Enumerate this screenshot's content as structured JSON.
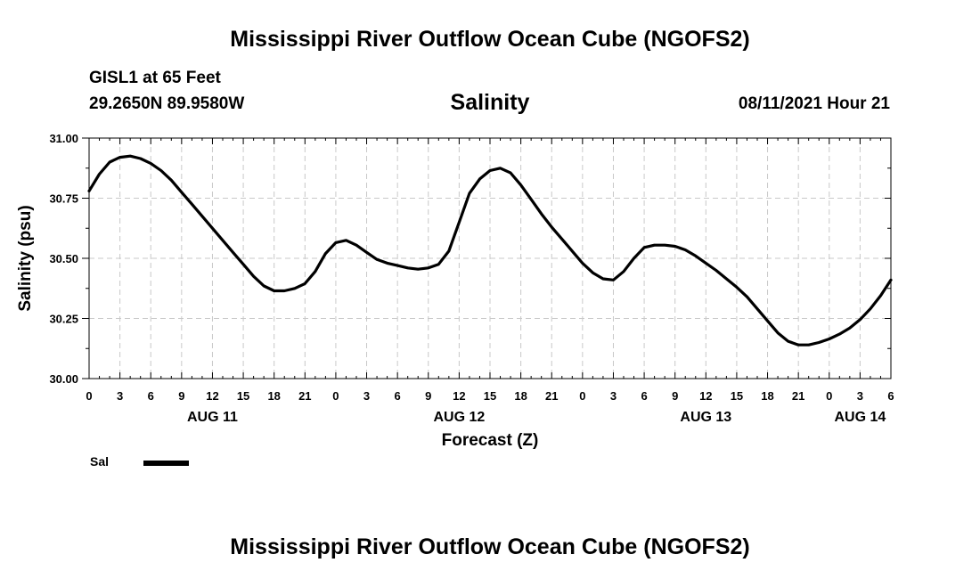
{
  "header": {
    "main_title": "Mississippi River Outflow Ocean Cube (NGOFS2)",
    "station_name": "GISL1 at 65 Feet",
    "station_coords": "29.2650N  89.9580W",
    "chart_title": "Salinity",
    "run_time": "08/11/2021 Hour 21"
  },
  "footer": {
    "bottom_title": "Mississippi River Outflow Ocean Cube (NGOFS2)"
  },
  "legend": {
    "label": "Sal"
  },
  "chart_data": {
    "type": "line",
    "title": "Salinity",
    "xlabel": "Forecast (Z)",
    "ylabel": "Salinity (psu)",
    "xlim": [
      0,
      78
    ],
    "ylim": [
      30.0,
      31.0
    ],
    "yticks": [
      30.0,
      30.25,
      30.5,
      30.75,
      31.0
    ],
    "ytick_labels": [
      "30.00",
      "30.25",
      "30.50",
      "30.75",
      "31.00"
    ],
    "xtick_hours": [
      0,
      3,
      6,
      9,
      12,
      15,
      18,
      21,
      24,
      27,
      30,
      33,
      36,
      39,
      42,
      45,
      48,
      51,
      54,
      57,
      60,
      63,
      66,
      69,
      72,
      75,
      78
    ],
    "xtick_labels": [
      "0",
      "3",
      "6",
      "9",
      "12",
      "15",
      "18",
      "21",
      "0",
      "3",
      "6",
      "9",
      "12",
      "15",
      "18",
      "21",
      "0",
      "3",
      "6",
      "9",
      "12",
      "15",
      "18",
      "21",
      "0",
      "3",
      "6"
    ],
    "day_labels": [
      {
        "hour": 12,
        "label": "AUG 11"
      },
      {
        "hour": 36,
        "label": "AUG 12"
      },
      {
        "hour": 60,
        "label": "AUG 13"
      },
      {
        "hour": 75,
        "label": "AUG 14"
      }
    ],
    "grid": true,
    "legend_position": "bottom-left",
    "series": [
      {
        "name": "Sal",
        "x": [
          0,
          1,
          2,
          3,
          4,
          5,
          6,
          7,
          8,
          9,
          10,
          11,
          12,
          13,
          14,
          15,
          16,
          17,
          18,
          19,
          20,
          21,
          22,
          23,
          24,
          25,
          26,
          27,
          28,
          29,
          30,
          31,
          32,
          33,
          34,
          35,
          36,
          37,
          38,
          39,
          40,
          41,
          42,
          43,
          44,
          45,
          46,
          47,
          48,
          49,
          50,
          51,
          52,
          53,
          54,
          55,
          56,
          57,
          58,
          59,
          60,
          61,
          62,
          63,
          64,
          65,
          66,
          67,
          68,
          69,
          70,
          71,
          72,
          73,
          74,
          75,
          76,
          77,
          78
        ],
        "values": [
          30.78,
          30.85,
          30.9,
          30.92,
          30.925,
          30.915,
          30.895,
          30.865,
          30.825,
          30.775,
          30.725,
          30.675,
          30.625,
          30.575,
          30.525,
          30.475,
          30.425,
          30.385,
          30.365,
          30.365,
          30.375,
          30.395,
          30.445,
          30.52,
          30.565,
          30.575,
          30.555,
          30.525,
          30.495,
          30.48,
          30.47,
          30.46,
          30.455,
          30.46,
          30.475,
          30.53,
          30.65,
          30.77,
          30.83,
          30.865,
          30.875,
          30.855,
          30.805,
          30.745,
          30.685,
          30.63,
          30.58,
          30.53,
          30.48,
          30.44,
          30.415,
          30.41,
          30.445,
          30.5,
          30.545,
          30.555,
          30.555,
          30.55,
          30.535,
          30.51,
          30.48,
          30.45,
          30.415,
          30.38,
          30.34,
          30.29,
          30.24,
          30.19,
          30.155,
          30.14,
          30.14,
          30.15,
          30.165,
          30.185,
          30.21,
          30.245,
          30.29,
          30.345,
          30.41
        ]
      }
    ]
  }
}
